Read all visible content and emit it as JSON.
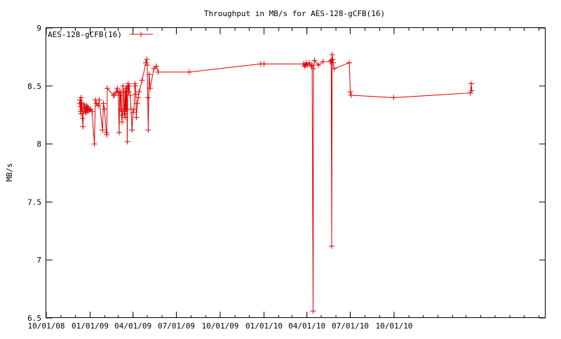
{
  "chart_data": {
    "type": "line",
    "title": "Throughput in MB/s for AES-128-gCFB(16)",
    "xlabel": "",
    "ylabel": "MB/s",
    "ylim": [
      6.5,
      9
    ],
    "xlim": [
      "2008-10-01",
      "2011-08-15"
    ],
    "grid": false,
    "legend_position": "top-left",
    "y_ticks": [
      "6.5",
      "7",
      "7.5",
      "8",
      "8.5",
      "9"
    ],
    "x_ticks": [
      {
        "label": "10/01/08",
        "date": "2008-10-01"
      },
      {
        "label": "01/01/09",
        "date": "2009-01-01"
      },
      {
        "label": "04/01/09",
        "date": "2009-04-01"
      },
      {
        "label": "07/01/09",
        "date": "2009-07-01"
      },
      {
        "label": "10/01/09",
        "date": "2009-10-01"
      },
      {
        "label": "01/01/10",
        "date": "2010-01-01"
      },
      {
        "label": "04/01/10",
        "date": "2010-04-01"
      },
      {
        "label": "07/01/10",
        "date": "2010-07-01"
      },
      {
        "label": "10/01/10",
        "date": "2010-10-01"
      }
    ],
    "series": [
      {
        "name": "AES-128-gCFB(16)",
        "color": "#dd0000",
        "points": [
          [
            "2008-12-10",
            8.35
          ],
          [
            "2008-12-11",
            8.38
          ],
          [
            "2008-12-12",
            8.28
          ],
          [
            "2008-12-12",
            8.32
          ],
          [
            "2008-12-13",
            8.26
          ],
          [
            "2008-12-13",
            8.4
          ],
          [
            "2008-12-14",
            8.3
          ],
          [
            "2008-12-15",
            8.35
          ],
          [
            "2008-12-16",
            8.22
          ],
          [
            "2008-12-17",
            8.15
          ],
          [
            "2008-12-18",
            8.3
          ],
          [
            "2008-12-19",
            8.34
          ],
          [
            "2008-12-20",
            8.32
          ],
          [
            "2008-12-21",
            8.28
          ],
          [
            "2008-12-22",
            8.3
          ],
          [
            "2008-12-23",
            8.27
          ],
          [
            "2008-12-24",
            8.33
          ],
          [
            "2008-12-25",
            8.29
          ],
          [
            "2008-12-26",
            8.32
          ],
          [
            "2008-12-27",
            8.28
          ],
          [
            "2008-12-28",
            8.31
          ],
          [
            "2008-12-30",
            8.29
          ],
          [
            "2009-01-02",
            8.3
          ],
          [
            "2009-01-05",
            8.28
          ],
          [
            "2009-01-10",
            8.0
          ],
          [
            "2009-01-12",
            8.38
          ],
          [
            "2009-01-14",
            8.35
          ],
          [
            "2009-01-18",
            8.33
          ],
          [
            "2009-01-20",
            8.38
          ],
          [
            "2009-01-27",
            8.12
          ],
          [
            "2009-01-29",
            8.35
          ],
          [
            "2009-01-31",
            8.3
          ],
          [
            "2009-02-04",
            8.1
          ],
          [
            "2009-02-05",
            8.08
          ],
          [
            "2009-02-06",
            8.48
          ],
          [
            "2009-02-19",
            8.42
          ],
          [
            "2009-02-21",
            8.42
          ],
          [
            "2009-02-25",
            8.45
          ],
          [
            "2009-02-27",
            8.48
          ],
          [
            "2009-03-01",
            8.44
          ],
          [
            "2009-03-03",
            8.1
          ],
          [
            "2009-03-04",
            8.45
          ],
          [
            "2009-03-05",
            8.42
          ],
          [
            "2009-03-06",
            8.3
          ],
          [
            "2009-03-07",
            8.45
          ],
          [
            "2009-03-08",
            8.25
          ],
          [
            "2009-03-09",
            8.19
          ],
          [
            "2009-03-10",
            8.28
          ],
          [
            "2009-03-11",
            8.5
          ],
          [
            "2009-03-12",
            8.45
          ],
          [
            "2009-03-13",
            8.3
          ],
          [
            "2009-03-14",
            8.26
          ],
          [
            "2009-03-15",
            8.45
          ],
          [
            "2009-03-16",
            8.23
          ],
          [
            "2009-03-17",
            8.48
          ],
          [
            "2009-03-18",
            8.3
          ],
          [
            "2009-03-19",
            8.48
          ],
          [
            "2009-03-20",
            8.02
          ],
          [
            "2009-03-21",
            8.5
          ],
          [
            "2009-03-22",
            8.52
          ],
          [
            "2009-03-23",
            8.45
          ],
          [
            "2009-03-24",
            8.5
          ],
          [
            "2009-03-26",
            8.42
          ],
          [
            "2009-03-28",
            8.3
          ],
          [
            "2009-03-30",
            8.12
          ],
          [
            "2009-04-01",
            8.27
          ],
          [
            "2009-04-03",
            8.3
          ],
          [
            "2009-04-05",
            8.52
          ],
          [
            "2009-04-06",
            8.5
          ],
          [
            "2009-04-07",
            8.43
          ],
          [
            "2009-04-08",
            8.23
          ],
          [
            "2009-04-10",
            8.35
          ],
          [
            "2009-04-12",
            8.4
          ],
          [
            "2009-04-14",
            8.45
          ],
          [
            "2009-04-20",
            8.55
          ],
          [
            "2009-04-28",
            8.7
          ],
          [
            "2009-04-30",
            8.73
          ],
          [
            "2009-05-01",
            8.68
          ],
          [
            "2009-05-02",
            8.4
          ],
          [
            "2009-05-03",
            8.12
          ],
          [
            "2009-05-05",
            8.6
          ],
          [
            "2009-05-07",
            8.48
          ],
          [
            "2009-05-15",
            8.65
          ],
          [
            "2009-05-20",
            8.67
          ],
          [
            "2009-05-24",
            8.62
          ],
          [
            "2009-07-28",
            8.62
          ],
          [
            "2009-12-25",
            8.69
          ],
          [
            "2010-01-01",
            8.69
          ],
          [
            "2010-03-25",
            8.69
          ],
          [
            "2010-03-27",
            8.67
          ],
          [
            "2010-03-29",
            8.68
          ],
          [
            "2010-03-31",
            8.7
          ],
          [
            "2010-04-02",
            8.68
          ],
          [
            "2010-04-06",
            8.7
          ],
          [
            "2010-04-10",
            8.67
          ],
          [
            "2010-04-12",
            8.68
          ],
          [
            "2010-04-14",
            6.56
          ],
          [
            "2010-04-15",
            8.65
          ],
          [
            "2010-04-17",
            8.72
          ],
          [
            "2010-04-25",
            8.68
          ],
          [
            "2010-05-05",
            8.71
          ],
          [
            "2010-05-20",
            8.71
          ],
          [
            "2010-05-22",
            8.72
          ],
          [
            "2010-05-23",
            7.12
          ],
          [
            "2010-05-24",
            8.77
          ],
          [
            "2010-05-25",
            8.73
          ],
          [
            "2010-05-26",
            8.7
          ],
          [
            "2010-05-28",
            8.65
          ],
          [
            "2010-06-29",
            8.7
          ],
          [
            "2010-07-01",
            8.45
          ],
          [
            "2010-07-03",
            8.42
          ],
          [
            "2010-09-30",
            8.4
          ],
          [
            "2011-03-10",
            8.44
          ],
          [
            "2011-03-12",
            8.52
          ],
          [
            "2011-03-13",
            8.46
          ]
        ]
      }
    ]
  }
}
